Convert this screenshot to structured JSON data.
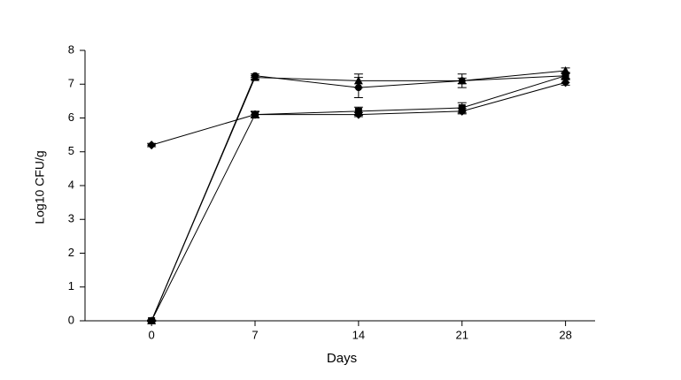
{
  "chart_data": {
    "type": "line",
    "x_label": "Days",
    "y_label": "Log10 CFU/g",
    "x": [
      0,
      7,
      14,
      21,
      28
    ],
    "series": [
      {
        "color": "#000000",
        "marker": "diamond",
        "values": [
          5.2,
          6.1,
          6.1,
          6.2,
          7.05
        ],
        "errors": [
          0.05,
          0.08,
          0.06,
          0.08,
          0.08
        ]
      },
      {
        "color": "#000000",
        "marker": "circle",
        "values": [
          0,
          7.25,
          6.9,
          7.1,
          7.25
        ],
        "errors": [
          0.02,
          0.05,
          0.3,
          0.2,
          0.1
        ]
      },
      {
        "color": "#000000",
        "marker": "triangle",
        "values": [
          0,
          7.2,
          7.1,
          7.1,
          7.4
        ],
        "errors": [
          0.02,
          0.05,
          0.2,
          0.08,
          0.08
        ]
      },
      {
        "color": "#000000",
        "marker": "square",
        "values": [
          0,
          6.1,
          6.2,
          6.3,
          7.25
        ],
        "errors": [
          0.02,
          0.1,
          0.12,
          0.15,
          0.08
        ]
      }
    ],
    "xlim": [
      -4.5,
      30
    ],
    "ylim": [
      0,
      8
    ],
    "xticks": [
      0,
      7,
      14,
      21,
      28
    ],
    "yticks": [
      0,
      1,
      2,
      3,
      4,
      5,
      6,
      7,
      8
    ]
  }
}
